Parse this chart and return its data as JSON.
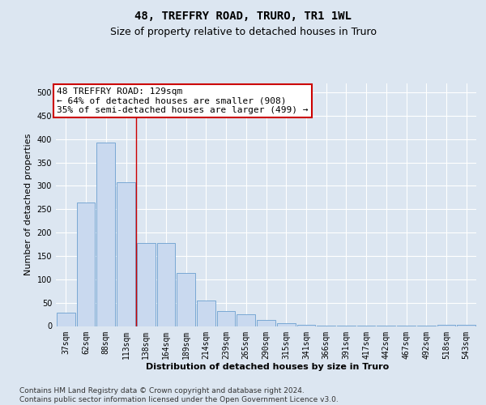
{
  "title": "48, TREFFRY ROAD, TRURO, TR1 1WL",
  "subtitle": "Size of property relative to detached houses in Truro",
  "xlabel": "Distribution of detached houses by size in Truro",
  "ylabel": "Number of detached properties",
  "categories": [
    "37sqm",
    "62sqm",
    "88sqm",
    "113sqm",
    "138sqm",
    "164sqm",
    "189sqm",
    "214sqm",
    "239sqm",
    "265sqm",
    "290sqm",
    "315sqm",
    "341sqm",
    "366sqm",
    "391sqm",
    "417sqm",
    "442sqm",
    "467sqm",
    "492sqm",
    "518sqm",
    "543sqm"
  ],
  "values": [
    28,
    265,
    393,
    308,
    178,
    178,
    113,
    55,
    32,
    25,
    13,
    6,
    3,
    1,
    1,
    1,
    1,
    1,
    1,
    3,
    2
  ],
  "bar_color": "#c9d9ef",
  "bar_edge_color": "#6b9fcf",
  "redline_x": 3.5,
  "annotation_line1": "48 TREFFRY ROAD: 129sqm",
  "annotation_line2": "← 64% of detached houses are smaller (908)",
  "annotation_line3": "35% of semi-detached houses are larger (499) →",
  "annotation_box_facecolor": "#ffffff",
  "annotation_box_edgecolor": "#cc0000",
  "ylim": [
    0,
    520
  ],
  "yticks": [
    0,
    50,
    100,
    150,
    200,
    250,
    300,
    350,
    400,
    450,
    500
  ],
  "bg_color": "#dce6f1",
  "grid_color": "#ffffff",
  "footer_line1": "Contains HM Land Registry data © Crown copyright and database right 2024.",
  "footer_line2": "Contains public sector information licensed under the Open Government Licence v3.0.",
  "title_fontsize": 10,
  "subtitle_fontsize": 9,
  "axis_label_fontsize": 8,
  "tick_fontsize": 7,
  "annot_fontsize": 8,
  "footer_fontsize": 6.5
}
